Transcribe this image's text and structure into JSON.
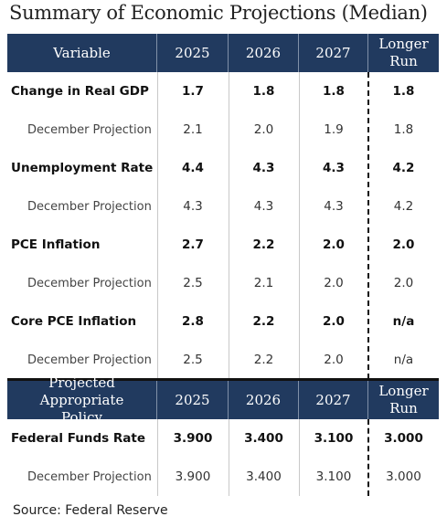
{
  "title": "Summary of Economic Projections (Median)",
  "table": {
    "header": [
      "Variable",
      "2025",
      "2026",
      "2027",
      "Longer Run"
    ],
    "rows": [
      [
        "Change in Real GDP",
        "1.7",
        "1.8",
        "1.8",
        "1.8"
      ],
      [
        "December Projection",
        "2.1",
        "2.0",
        "1.9",
        "1.8"
      ],
      [
        "Unemployment Rate",
        "4.4",
        "4.3",
        "4.3",
        "4.2"
      ],
      [
        "December Projection",
        "4.3",
        "4.3",
        "4.3",
        "4.2"
      ],
      [
        "PCE Inflation",
        "2.7",
        "2.2",
        "2.0",
        "2.0"
      ],
      [
        "December Projection",
        "2.5",
        "2.1",
        "2.0",
        "2.0"
      ],
      [
        "Core PCE Inflation",
        "2.8",
        "2.2",
        "2.0",
        "n/a"
      ],
      [
        "December Projection",
        "2.5",
        "2.2",
        "2.0",
        "n/a"
      ]
    ]
  },
  "policy_table": {
    "header": [
      "Projected Appropriate Policy",
      "2025",
      "2026",
      "2027",
      "Longer Run"
    ],
    "rows": [
      [
        "Federal Funds Rate",
        "3.900",
        "3.400",
        "3.100",
        "3.000"
      ],
      [
        "December Projection",
        "3.900",
        "3.400",
        "3.100",
        "3.000"
      ]
    ]
  },
  "source": "Source: Federal Reserve"
}
